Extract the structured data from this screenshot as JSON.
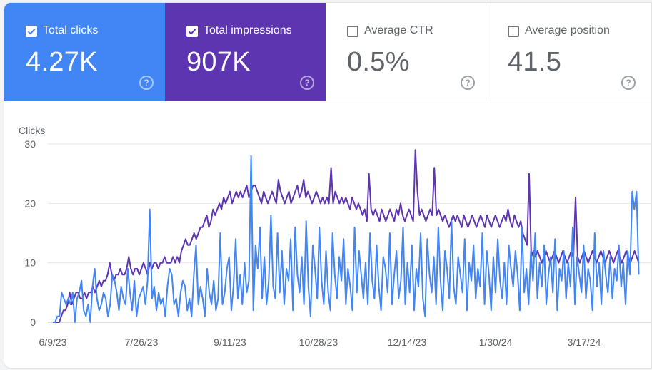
{
  "metrics": [
    {
      "label": "Total clicks",
      "value": "4.27K",
      "selected": true,
      "color": "#4285f4"
    },
    {
      "label": "Total impressions",
      "value": "907K",
      "selected": true,
      "color": "#5e35b1"
    },
    {
      "label": "Average CTR",
      "value": "0.5%",
      "selected": false,
      "color": "#ffffff"
    },
    {
      "label": "Average position",
      "value": "41.5",
      "selected": false,
      "color": "#ffffff"
    }
  ],
  "help_icon_glyph": "?",
  "chart_data": {
    "type": "line",
    "ylabel": "Clicks",
    "ylim": [
      0,
      30
    ],
    "yticks": [
      0,
      10,
      20,
      30
    ],
    "grid": true,
    "x_tick_labels": [
      "6/9/23",
      "7/26/23",
      "9/11/23",
      "10/28/23",
      "12/14/23",
      "1/30/24",
      "3/17/24"
    ],
    "x_range": [
      "2023-06-09",
      "2024-04-15"
    ],
    "series": [
      {
        "name": "Total impressions",
        "color": "#5e35b1",
        "values": [
          0,
          0,
          0,
          0,
          1,
          2,
          2,
          3,
          3,
          3,
          4,
          5,
          5,
          4,
          4,
          5,
          4,
          5,
          5,
          6,
          5,
          6,
          7,
          6,
          7,
          7,
          8,
          8,
          8,
          7,
          8,
          8,
          9,
          8,
          8,
          9,
          8,
          9,
          8,
          9,
          9,
          8,
          9,
          10,
          9,
          8,
          10,
          9,
          10,
          10,
          9,
          10,
          10,
          11,
          10,
          10,
          10,
          11,
          10,
          11,
          10,
          12,
          13,
          14,
          12,
          13,
          14,
          15,
          14,
          15,
          16,
          16,
          17,
          18,
          16,
          17,
          19,
          18,
          19,
          20,
          19,
          21,
          20,
          21,
          22,
          20,
          21,
          22,
          21,
          22,
          21,
          22,
          23,
          21,
          22,
          23,
          21,
          22,
          21,
          20,
          22,
          21,
          20,
          21,
          22,
          21,
          20,
          21,
          22,
          21,
          20,
          21,
          22,
          20,
          21,
          22,
          23,
          21,
          22,
          24,
          21,
          22,
          21,
          20,
          21,
          22,
          21,
          20,
          21,
          20,
          21,
          20,
          21,
          20,
          22,
          21,
          20,
          21,
          20,
          21,
          20,
          19,
          21,
          20,
          19,
          20,
          19,
          18,
          19,
          17,
          18,
          19,
          18,
          19,
          18,
          17,
          19,
          18,
          17,
          18,
          19,
          18,
          17,
          19,
          18,
          20,
          18,
          17,
          18,
          19,
          18,
          17,
          18,
          22,
          18,
          19,
          18,
          17,
          18,
          19,
          18,
          17,
          18,
          19,
          18,
          17,
          18,
          17,
          16,
          17,
          18,
          17,
          18,
          17,
          16,
          18,
          17,
          16,
          17,
          18,
          17,
          16,
          17,
          18,
          17,
          16,
          18,
          17,
          16,
          17,
          18,
          17,
          16,
          17,
          18,
          17,
          19,
          17,
          16,
          18,
          17,
          16,
          17,
          15,
          14,
          13,
          12,
          11,
          12,
          11,
          12,
          11,
          10,
          11,
          12,
          11,
          10,
          11,
          12,
          11,
          10,
          11,
          12,
          11,
          10,
          11,
          12,
          11,
          10,
          11,
          10,
          11,
          12,
          11,
          10,
          11,
          12,
          11,
          10,
          11,
          12,
          11,
          10,
          11,
          12,
          11,
          10,
          11,
          12,
          11,
          10,
          11,
          12,
          11,
          10,
          11,
          12,
          11,
          10
        ],
        "spikes": {
          "8": 5,
          "27": 10,
          "36": 11,
          "64": 13,
          "96": 23,
          "107": 24,
          "132": 26,
          "150": 25,
          "172": 29,
          "181": 26,
          "226": 25,
          "248": 21
        }
      },
      {
        "name": "Total clicks",
        "color": "#4285f4",
        "values": [
          0,
          0,
          1,
          1,
          5,
          4,
          3,
          4,
          3,
          5,
          0,
          4,
          5,
          7,
          2,
          1,
          3,
          0,
          6,
          9,
          4,
          2,
          3,
          5,
          4,
          1,
          3,
          8,
          7,
          5,
          2,
          6,
          4,
          3,
          9,
          5,
          2,
          7,
          1,
          4,
          5,
          6,
          3,
          7,
          19,
          4,
          6,
          2,
          5,
          3,
          4,
          1,
          6,
          9,
          8,
          3,
          4,
          1,
          5,
          7,
          6,
          2,
          4,
          1,
          8,
          13,
          3,
          6,
          4,
          1,
          9,
          5,
          3,
          7,
          2,
          4,
          15,
          3,
          5,
          9,
          11,
          2,
          6,
          14,
          4,
          8,
          3,
          10,
          5,
          7,
          28,
          2,
          13,
          9,
          16,
          4,
          11,
          3,
          7,
          18,
          6,
          4,
          15,
          5,
          12,
          3,
          9,
          7,
          14,
          2,
          16,
          8,
          5,
          11,
          3,
          17,
          6,
          1,
          13,
          9,
          4,
          16,
          7,
          3,
          12,
          5,
          2,
          15,
          8,
          4,
          11,
          7,
          14,
          3,
          9,
          6,
          2,
          16,
          5,
          12,
          8,
          4,
          10,
          3,
          15,
          7,
          4,
          13,
          6,
          2,
          11,
          9,
          5,
          15,
          3,
          8,
          12,
          4,
          7,
          16,
          3,
          10,
          5,
          13,
          2,
          9,
          6,
          15,
          4,
          1,
          14,
          8,
          5,
          11,
          3,
          16,
          7,
          2,
          12,
          9,
          4,
          17,
          6,
          3,
          11,
          8,
          5,
          14,
          2,
          10,
          7,
          13,
          4,
          9,
          6,
          15,
          3,
          12,
          8,
          2,
          11,
          5,
          14,
          7,
          4,
          10,
          3,
          13,
          9,
          6,
          12,
          8,
          2,
          16,
          5,
          9,
          3,
          12,
          7,
          15,
          4,
          10,
          6,
          13,
          3,
          8,
          11,
          5,
          14,
          2,
          9,
          7,
          12,
          4,
          10,
          6,
          16,
          3,
          11,
          8,
          5,
          13,
          4,
          9,
          7,
          2,
          15,
          6,
          10,
          3,
          12,
          8,
          5,
          11,
          4,
          9,
          7,
          13,
          6,
          10,
          3,
          12,
          8,
          22,
          19,
          22,
          8
        ]
      }
    ]
  }
}
